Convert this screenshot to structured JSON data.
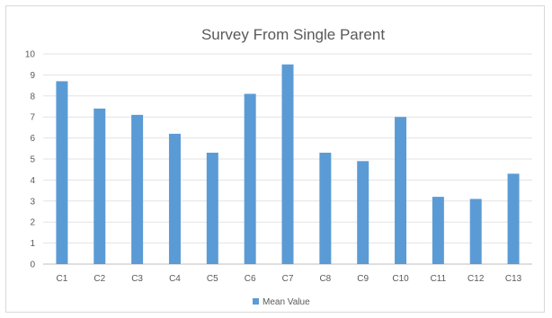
{
  "chart_data": {
    "type": "bar",
    "title": "Survey From Single Parent",
    "categories": [
      "C1",
      "C2",
      "C3",
      "C4",
      "C5",
      "C6",
      "C7",
      "C8",
      "C9",
      "C10",
      "C11",
      "C12",
      "C13"
    ],
    "series": [
      {
        "name": "Mean Value",
        "values": [
          8.7,
          7.4,
          7.1,
          6.2,
          5.3,
          8.1,
          9.5,
          5.3,
          4.9,
          7.0,
          3.2,
          3.1,
          4.3
        ],
        "color": "#5b9bd5"
      }
    ],
    "xlabel": "",
    "ylabel": "",
    "ylim": [
      0,
      10
    ],
    "y_ticks": [
      0,
      1,
      2,
      3,
      4,
      5,
      6,
      7,
      8,
      9,
      10
    ],
    "grid": true,
    "legend_position": "bottom"
  }
}
